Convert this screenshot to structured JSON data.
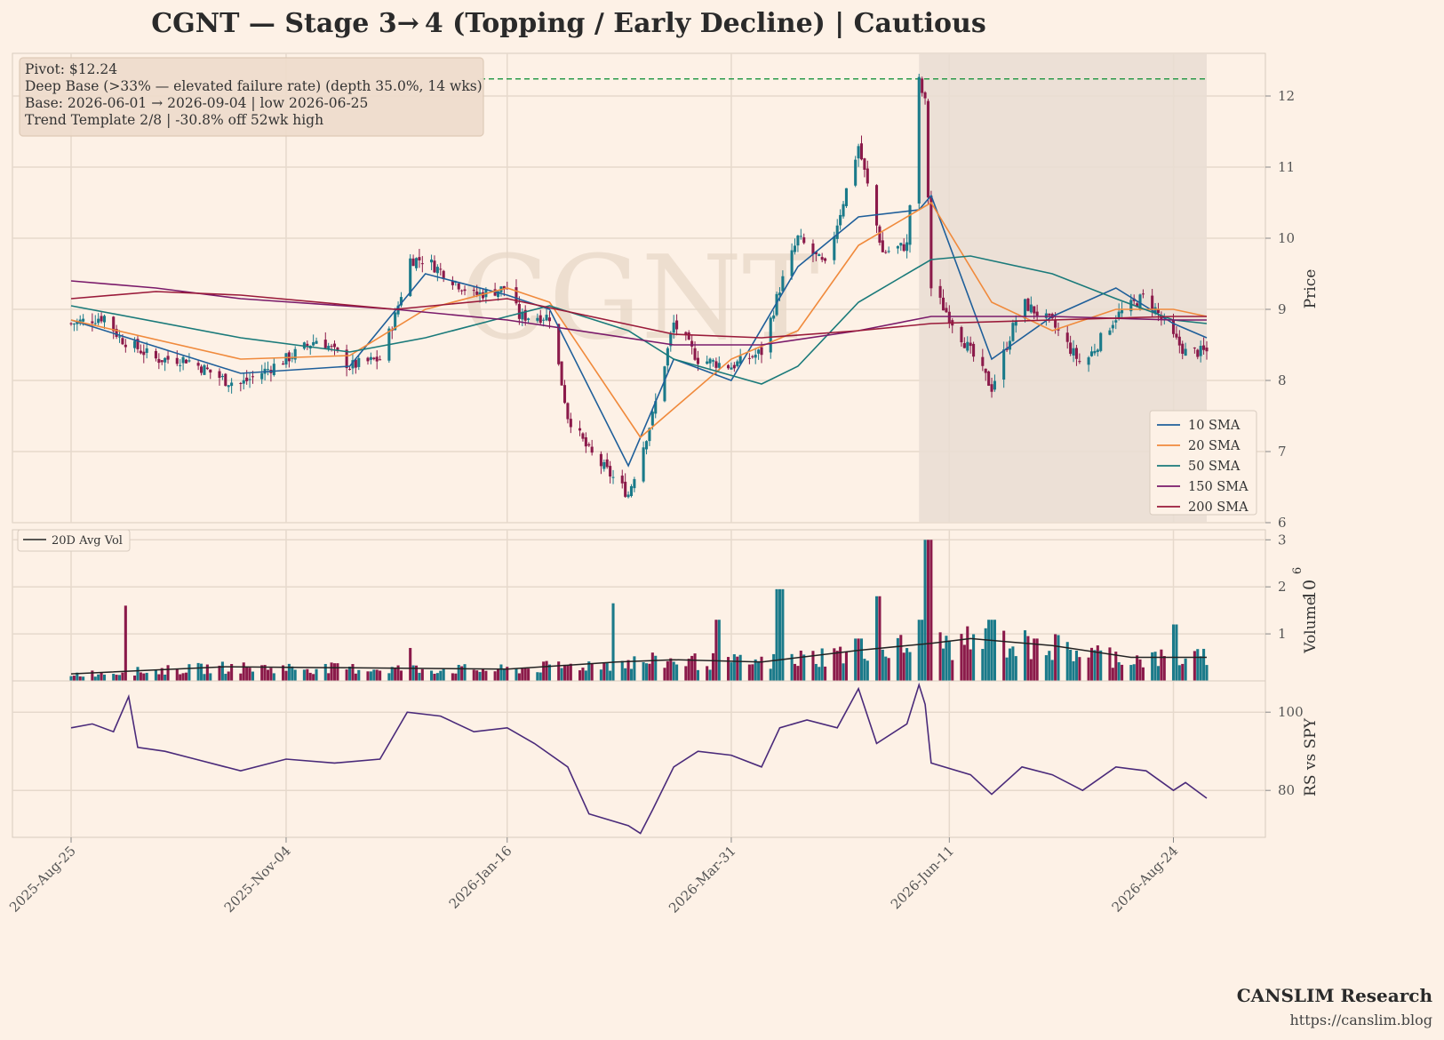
{
  "title": "CGNT  —  Stage 3→ 4 (Topping / Early Decline)  |  Cautious",
  "watermark": "CGNT",
  "info_box": {
    "lines": [
      "Pivot: $12.24",
      "Deep Base (>33% — elevated failure rate)  (depth 35.0%, 14 wks)",
      "Base: 2026-06-01 → 2026-09-04  |  low 2026-06-25",
      "Trend Template 2/8  |  -30.8% off 52wk high"
    ]
  },
  "footer": {
    "brand": "CANSLIM Research",
    "url": "https://canslim.blog"
  },
  "colors": {
    "background": "#fdf1e6",
    "up_candle": "#1a7a8a",
    "down_candle": "#8b1a4a",
    "sma10": "#1f5f9a",
    "sma20": "#f08a3c",
    "sma50": "#1a7a7a",
    "sma150": "#7a1a6a",
    "sma200": "#9a1a3a",
    "pivot_line": "#2a9a4a",
    "rs_line": "#4a2a7a",
    "avg_vol": "#222222",
    "base_shade": "#e9ddd2"
  },
  "chart_data": [
    {
      "type": "line",
      "panel": "price",
      "subtype": "candlestick",
      "ylabel": "Price",
      "ylim": [
        6,
        12.6
      ],
      "yticks": [
        6,
        7,
        8,
        9,
        10,
        11,
        12
      ],
      "x_tick_labels": [
        "2025-Aug-25",
        "2025-Nov-04",
        "2026-Jan-16",
        "2026-Mar-31",
        "2026-Jun-11",
        "2026-Aug-24"
      ],
      "x_range": [
        "2025-08-25",
        "2026-09-04"
      ],
      "pivot": 12.24,
      "base_shade": [
        "2026-06-01",
        "2026-09-04"
      ],
      "legend_position": "lower-right",
      "close_anchors": [
        [
          "2025-08-25",
          8.8
        ],
        [
          "2025-09-05",
          8.9
        ],
        [
          "2025-09-10",
          8.6
        ],
        [
          "2025-09-22",
          8.3
        ],
        [
          "2025-10-02",
          8.3
        ],
        [
          "2025-10-15",
          8.0
        ],
        [
          "2025-10-20",
          7.95
        ],
        [
          "2025-11-04",
          8.3
        ],
        [
          "2025-11-15",
          8.6
        ],
        [
          "2025-11-25",
          8.2
        ],
        [
          "2025-12-05",
          8.3
        ],
        [
          "2025-12-10",
          8.9
        ],
        [
          "2025-12-15",
          9.7
        ],
        [
          "2025-12-20",
          9.7
        ],
        [
          "2026-01-05",
          9.2
        ],
        [
          "2026-01-16",
          9.3
        ],
        [
          "2026-01-20",
          8.9
        ],
        [
          "2026-01-30",
          8.9
        ],
        [
          "2026-02-05",
          7.5
        ],
        [
          "2026-02-12",
          7.0
        ],
        [
          "2026-02-25",
          6.4
        ],
        [
          "2026-03-05",
          7.5
        ],
        [
          "2026-03-12",
          8.8
        ],
        [
          "2026-03-20",
          8.3
        ],
        [
          "2026-03-31",
          8.2
        ],
        [
          "2026-04-10",
          8.4
        ],
        [
          "2026-04-16",
          9.3
        ],
        [
          "2026-04-22",
          10.0
        ],
        [
          "2026-05-01",
          9.6
        ],
        [
          "2026-05-12",
          11.3
        ],
        [
          "2026-05-20",
          9.8
        ],
        [
          "2026-05-28",
          9.9
        ],
        [
          "2026-06-01",
          12.2
        ],
        [
          "2026-06-03",
          11.9
        ],
        [
          "2026-06-05",
          9.3
        ],
        [
          "2026-06-11",
          8.9
        ],
        [
          "2026-06-25",
          7.9
        ],
        [
          "2026-07-05",
          9.1
        ],
        [
          "2026-07-15",
          8.8
        ],
        [
          "2026-07-25",
          8.2
        ],
        [
          "2026-08-05",
          8.9
        ],
        [
          "2026-08-15",
          9.2
        ],
        [
          "2026-08-24",
          8.6
        ],
        [
          "2026-08-28",
          8.4
        ],
        [
          "2026-09-04",
          8.4
        ]
      ],
      "series": [
        {
          "name": "10 SMA",
          "values": [
            [
              "2025-08-25",
              8.85
            ],
            [
              "2025-10-20",
              8.1
            ],
            [
              "2025-11-25",
              8.2
            ],
            [
              "2025-12-20",
              9.5
            ],
            [
              "2026-01-16",
              9.2
            ],
            [
              "2026-01-30",
              9.0
            ],
            [
              "2026-02-25",
              6.8
            ],
            [
              "2026-03-12",
              8.3
            ],
            [
              "2026-03-31",
              8.0
            ],
            [
              "2026-04-22",
              9.6
            ],
            [
              "2026-05-12",
              10.3
            ],
            [
              "2026-06-01",
              10.4
            ],
            [
              "2026-06-05",
              10.6
            ],
            [
              "2026-06-25",
              8.3
            ],
            [
              "2026-07-15",
              8.9
            ],
            [
              "2026-08-05",
              9.3
            ],
            [
              "2026-08-24",
              8.8
            ],
            [
              "2026-09-04",
              8.6
            ]
          ]
        },
        {
          "name": "20 SMA",
          "values": [
            [
              "2025-08-25",
              8.85
            ],
            [
              "2025-10-20",
              8.3
            ],
            [
              "2025-11-25",
              8.35
            ],
            [
              "2025-12-20",
              9.0
            ],
            [
              "2026-01-16",
              9.3
            ],
            [
              "2026-01-30",
              9.1
            ],
            [
              "2026-03-01",
              7.2
            ],
            [
              "2026-03-31",
              8.3
            ],
            [
              "2026-04-22",
              8.7
            ],
            [
              "2026-05-12",
              9.9
            ],
            [
              "2026-06-05",
              10.5
            ],
            [
              "2026-06-25",
              9.1
            ],
            [
              "2026-07-15",
              8.7
            ],
            [
              "2026-08-05",
              9.0
            ],
            [
              "2026-08-24",
              9.0
            ],
            [
              "2026-09-04",
              8.9
            ]
          ]
        },
        {
          "name": "50 SMA",
          "values": [
            [
              "2025-08-25",
              9.05
            ],
            [
              "2025-10-20",
              8.6
            ],
            [
              "2025-11-25",
              8.4
            ],
            [
              "2025-12-20",
              8.6
            ],
            [
              "2026-01-16",
              8.9
            ],
            [
              "2026-01-30",
              9.05
            ],
            [
              "2026-02-25",
              8.7
            ],
            [
              "2026-03-12",
              8.3
            ],
            [
              "2026-04-10",
              7.95
            ],
            [
              "2026-04-22",
              8.2
            ],
            [
              "2026-05-12",
              9.1
            ],
            [
              "2026-06-05",
              9.7
            ],
            [
              "2026-06-18",
              9.75
            ],
            [
              "2026-07-15",
              9.5
            ],
            [
              "2026-08-05",
              9.15
            ],
            [
              "2026-08-24",
              8.85
            ],
            [
              "2026-09-04",
              8.8
            ]
          ]
        },
        {
          "name": "150 SMA",
          "values": [
            [
              "2025-08-25",
              9.4
            ],
            [
              "2025-09-22",
              9.3
            ],
            [
              "2025-10-20",
              9.15
            ],
            [
              "2025-12-10",
              9.0
            ],
            [
              "2026-01-16",
              8.85
            ],
            [
              "2026-03-12",
              8.5
            ],
            [
              "2026-04-10",
              8.5
            ],
            [
              "2026-05-12",
              8.7
            ],
            [
              "2026-06-05",
              8.9
            ],
            [
              "2026-07-15",
              8.9
            ],
            [
              "2026-08-24",
              8.85
            ],
            [
              "2026-09-04",
              8.85
            ]
          ]
        },
        {
          "name": "200 SMA",
          "values": [
            [
              "2025-08-25",
              9.15
            ],
            [
              "2025-09-22",
              9.25
            ],
            [
              "2025-10-20",
              9.2
            ],
            [
              "2025-12-10",
              9.0
            ],
            [
              "2026-01-16",
              9.15
            ],
            [
              "2026-03-12",
              8.65
            ],
            [
              "2026-04-10",
              8.6
            ],
            [
              "2026-05-12",
              8.7
            ],
            [
              "2026-06-05",
              8.8
            ],
            [
              "2026-07-15",
              8.85
            ],
            [
              "2026-08-24",
              8.9
            ],
            [
              "2026-09-04",
              8.9
            ]
          ]
        }
      ]
    },
    {
      "type": "bar",
      "panel": "volume",
      "ylabel": "Volume",
      "yaxis_exponent_label": "10",
      "yaxis_exponent_power": "6",
      "ylim": [
        0,
        3.1
      ],
      "yticks": [
        1,
        2,
        3
      ],
      "base_level_millions": 0.3,
      "spikes_millions": [
        [
          "2025-09-13",
          1.6
        ],
        [
          "2025-12-14",
          0.7
        ],
        [
          "2026-02-21",
          1.65
        ],
        [
          "2026-03-27",
          1.3
        ],
        [
          "2026-04-16",
          1.95
        ],
        [
          "2026-05-12",
          0.9
        ],
        [
          "2026-05-18",
          1.8
        ],
        [
          "2026-06-01",
          1.3
        ],
        [
          "2026-06-04",
          3.0
        ],
        [
          "2026-06-14",
          1.0
        ],
        [
          "2026-06-25",
          1.3
        ],
        [
          "2026-07-10",
          0.9
        ],
        [
          "2026-08-24",
          1.2
        ]
      ],
      "series": [
        {
          "name": "20D Avg Vol",
          "values": [
            [
              "2025-08-25",
              0.15
            ],
            [
              "2025-10-15",
              0.3
            ],
            [
              "2026-01-16",
              0.25
            ],
            [
              "2026-02-21",
              0.4
            ],
            [
              "2026-03-12",
              0.45
            ],
            [
              "2026-04-10",
              0.4
            ],
            [
              "2026-05-12",
              0.65
            ],
            [
              "2026-06-05",
              0.8
            ],
            [
              "2026-06-18",
              0.9
            ],
            [
              "2026-07-15",
              0.75
            ],
            [
              "2026-08-10",
              0.5
            ],
            [
              "2026-09-04",
              0.5
            ]
          ]
        }
      ]
    },
    {
      "type": "line",
      "panel": "rs",
      "ylabel": "RS vs SPY",
      "ylim": [
        68,
        108
      ],
      "yticks": [
        80,
        100
      ],
      "series": [
        {
          "name": "RS vs SPY",
          "values": [
            [
              "2025-08-25",
              96
            ],
            [
              "2025-09-01",
              97
            ],
            [
              "2025-09-08",
              95
            ],
            [
              "2025-09-13",
              104
            ],
            [
              "2025-09-16",
              91
            ],
            [
              "2025-09-25",
              90
            ],
            [
              "2025-10-05",
              88
            ],
            [
              "2025-10-20",
              85
            ],
            [
              "2025-11-04",
              88
            ],
            [
              "2025-11-20",
              87
            ],
            [
              "2025-12-05",
              88
            ],
            [
              "2025-12-14",
              100
            ],
            [
              "2025-12-25",
              99
            ],
            [
              "2026-01-05",
              95
            ],
            [
              "2026-01-16",
              96
            ],
            [
              "2026-01-25",
              92
            ],
            [
              "2026-02-05",
              86
            ],
            [
              "2026-02-12",
              74
            ],
            [
              "2026-02-25",
              71
            ],
            [
              "2026-03-01",
              69
            ],
            [
              "2026-03-05",
              75
            ],
            [
              "2026-03-12",
              86
            ],
            [
              "2026-03-20",
              90
            ],
            [
              "2026-03-31",
              89
            ],
            [
              "2026-04-10",
              86
            ],
            [
              "2026-04-16",
              96
            ],
            [
              "2026-04-25",
              98
            ],
            [
              "2026-05-05",
              96
            ],
            [
              "2026-05-12",
              106
            ],
            [
              "2026-05-18",
              92
            ],
            [
              "2026-05-28",
              97
            ],
            [
              "2026-06-01",
              107
            ],
            [
              "2026-06-03",
              102
            ],
            [
              "2026-06-05",
              87
            ],
            [
              "2026-06-18",
              84
            ],
            [
              "2026-06-25",
              79
            ],
            [
              "2026-07-05",
              86
            ],
            [
              "2026-07-15",
              84
            ],
            [
              "2026-07-25",
              80
            ],
            [
              "2026-08-05",
              86
            ],
            [
              "2026-08-15",
              85
            ],
            [
              "2026-08-24",
              80
            ],
            [
              "2026-08-28",
              82
            ],
            [
              "2026-09-04",
              78
            ]
          ]
        }
      ]
    }
  ]
}
